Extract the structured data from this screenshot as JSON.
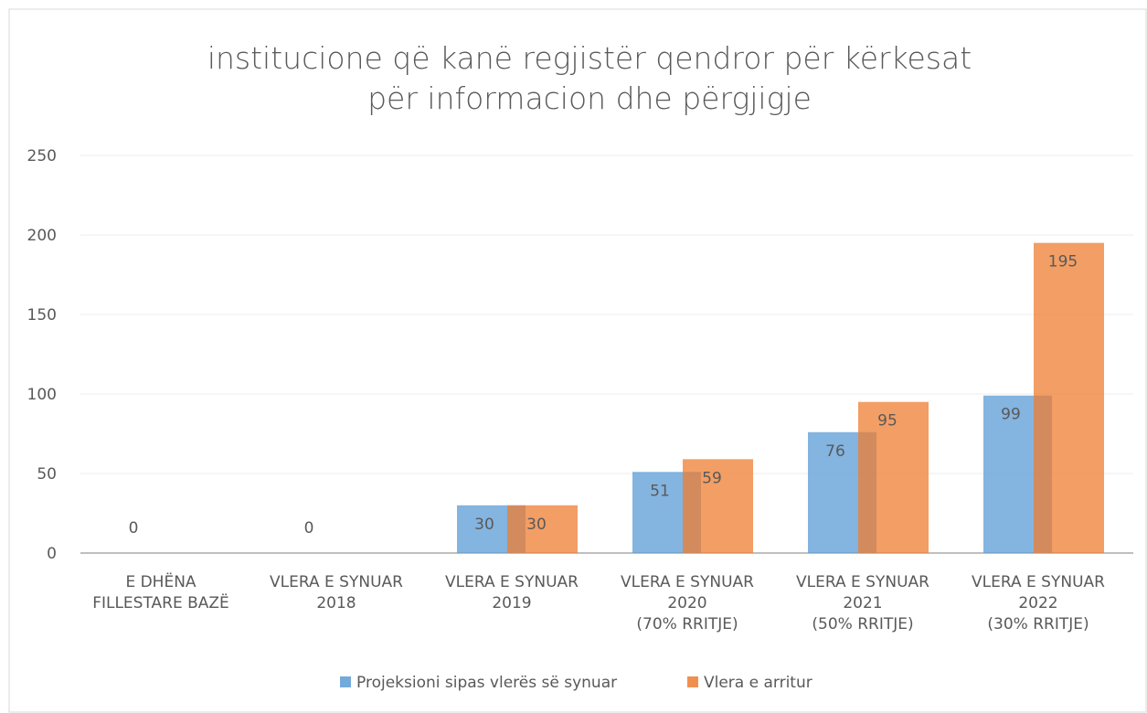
{
  "chart_data": {
    "type": "bar",
    "title": "institucione që kanë regjistër qendror për kërkesat\npër informacion dhe përgjigje",
    "categories": [
      "E DHËNA\nFILLESTARE BAZË",
      "VLERA E SYNUAR\n2018",
      "VLERA E SYNUAR\n2019",
      "VLERA E SYNUAR\n2020\n(70% RRITJE)",
      "VLERA E SYNUAR\n2021\n(50% RRITJE)",
      "VLERA E SYNUAR\n2022\n(30% RRITJE)"
    ],
    "series": [
      {
        "name": "Projeksioni sipas vlerës së synuar",
        "color": "#5b9bd5",
        "values": [
          0,
          0,
          30,
          51,
          76,
          99
        ]
      },
      {
        "name": "Vlera e arritur",
        "color": "#ed7d31",
        "values": [
          null,
          null,
          30,
          59,
          95,
          195
        ]
      }
    ],
    "ylim": [
      0,
      250
    ],
    "yticks": [
      0,
      50,
      100,
      150,
      200,
      250
    ],
    "grid": true,
    "legend": "bottom"
  }
}
